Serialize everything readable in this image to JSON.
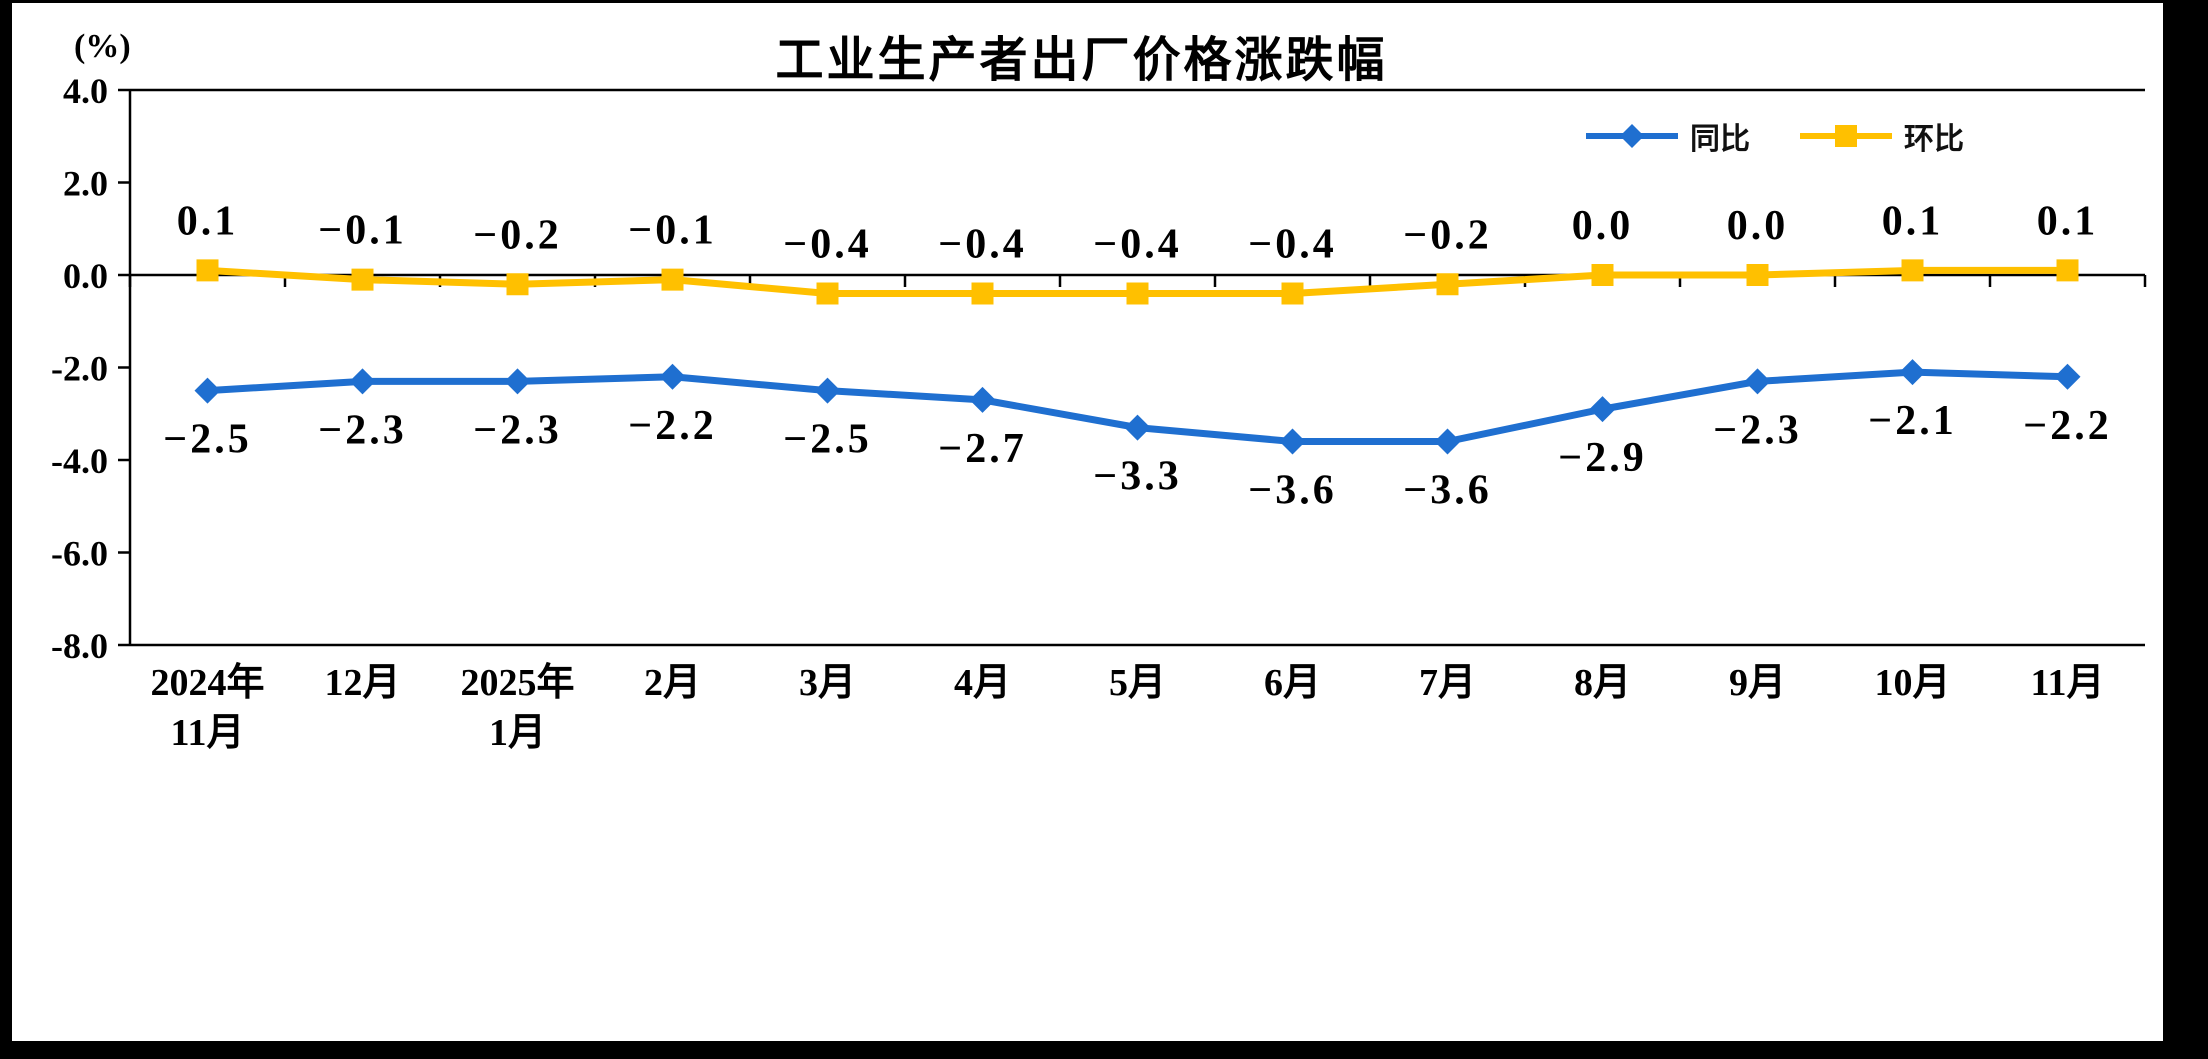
{
  "figure": {
    "title": "工业生产者出厂价格涨跌幅",
    "unit_label": "(%)"
  },
  "chart_data": {
    "type": "line",
    "title": "工业生产者出厂价格涨跌幅",
    "unit_label": "(%)",
    "legend_position": "top-right",
    "grid": false,
    "categories": [
      "2024年\n11月",
      "12月",
      "2025年\n1月",
      "2月",
      "3月",
      "4月",
      "5月",
      "6月",
      "7月",
      "8月",
      "9月",
      "10月",
      "11月"
    ],
    "ylim": [
      -8.0,
      4.0
    ],
    "ytick_values": [
      4.0,
      2.0,
      0.0,
      -2.0,
      -4.0,
      -6.0,
      -8.0
    ],
    "ytick_labels": [
      "4.0",
      "2.0",
      "0.0",
      "-2.0",
      "-4.0",
      "-6.0",
      "-8.0"
    ],
    "series": [
      {
        "name": "同比",
        "color": "#1f6fd0",
        "marker": "diamond",
        "label_position": "below",
        "values": [
          -2.5,
          -2.3,
          -2.3,
          -2.2,
          -2.5,
          -2.7,
          -3.3,
          -3.6,
          -3.6,
          -2.9,
          -2.3,
          -2.1,
          -2.2
        ],
        "labels": [
          "−2.5",
          "−2.3",
          "−2.3",
          "−2.2",
          "−2.5",
          "−2.7",
          "−3.3",
          "−3.6",
          "−3.6",
          "−2.9",
          "−2.3",
          "−2.1",
          "−2.2"
        ]
      },
      {
        "name": "环比",
        "color": "#ffc000",
        "marker": "square",
        "label_position": "above",
        "values": [
          0.1,
          -0.1,
          -0.2,
          -0.1,
          -0.4,
          -0.4,
          -0.4,
          -0.4,
          -0.2,
          0.0,
          0.0,
          0.1,
          0.1
        ],
        "labels": [
          "0.1",
          "−0.1",
          "−0.2",
          "−0.1",
          "−0.4",
          "−0.4",
          "−0.4",
          "−0.4",
          "−0.2",
          "0.0",
          "0.0",
          "0.1",
          "0.1"
        ]
      }
    ]
  }
}
